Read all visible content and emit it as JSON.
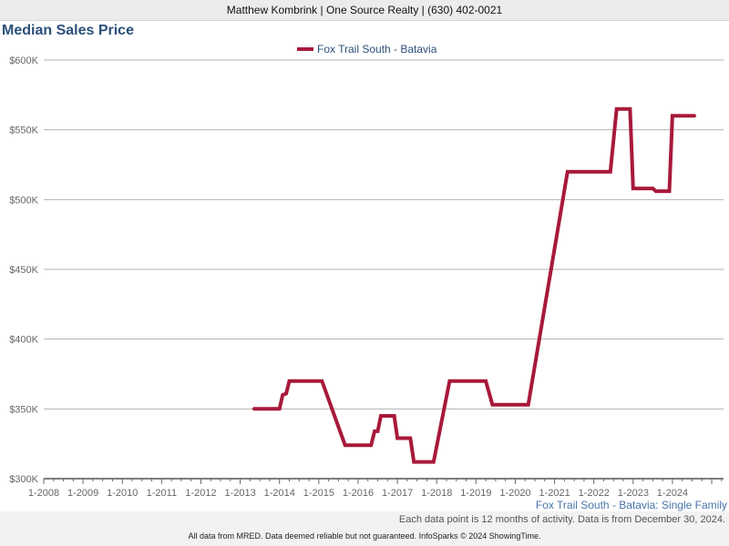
{
  "header": {
    "agent_line": "Matthew Kombrink | One Source Realty | (630) 402-0021"
  },
  "chart_title": "Median Sales Price",
  "chart_data": {
    "type": "line",
    "title": "Median Sales Price",
    "xlabel": "",
    "ylabel": "",
    "xlim": [
      2008.0,
      2025.3
    ],
    "ylim": [
      300000,
      600000
    ],
    "x_tick_values": [
      2008,
      2009,
      2010,
      2011,
      2012,
      2013,
      2014,
      2015,
      2016,
      2017,
      2018,
      2019,
      2020,
      2021,
      2022,
      2023,
      2024
    ],
    "x_tick_labels": [
      "1-2008",
      "1-2009",
      "1-2010",
      "1-2011",
      "1-2012",
      "1-2013",
      "1-2014",
      "1-2015",
      "1-2016",
      "1-2017",
      "1-2018",
      "1-2019",
      "1-2020",
      "1-2021",
      "1-2022",
      "1-2023",
      "1-2024"
    ],
    "y_tick_values": [
      300000,
      350000,
      400000,
      450000,
      500000,
      550000,
      600000
    ],
    "y_tick_labels": [
      "$300K",
      "$350K",
      "$400K",
      "$450K",
      "$500K",
      "$550K",
      "$600K"
    ],
    "grid": true,
    "legend_position": "top-center",
    "series": [
      {
        "name": "Fox Trail South - Batavia",
        "color": "#a8193a",
        "points": [
          [
            2013.33,
            350000
          ],
          [
            2014.0,
            350000
          ],
          [
            2014.08,
            360000
          ],
          [
            2014.17,
            361000
          ],
          [
            2014.25,
            370000
          ],
          [
            2015.08,
            370000
          ],
          [
            2015.67,
            324000
          ],
          [
            2016.33,
            324000
          ],
          [
            2016.42,
            334000
          ],
          [
            2016.5,
            334000
          ],
          [
            2016.58,
            345000
          ],
          [
            2016.92,
            345000
          ],
          [
            2017.0,
            329000
          ],
          [
            2017.33,
            329000
          ],
          [
            2017.42,
            312000
          ],
          [
            2017.92,
            312000
          ],
          [
            2018.33,
            370000
          ],
          [
            2019.25,
            370000
          ],
          [
            2019.42,
            353000
          ],
          [
            2020.33,
            353000
          ],
          [
            2021.33,
            520000
          ],
          [
            2022.42,
            520000
          ],
          [
            2022.58,
            565000
          ],
          [
            2022.92,
            565000
          ],
          [
            2023.0,
            508000
          ],
          [
            2023.5,
            508000
          ],
          [
            2023.58,
            506000
          ],
          [
            2023.92,
            506000
          ],
          [
            2024.0,
            560000
          ],
          [
            2024.58,
            560000
          ]
        ]
      }
    ]
  },
  "series_label": "Fox Trail South - Batavia: Single Family",
  "note": "Each data point is 12 months of activity. Data is from December 30, 2024.",
  "footer": "All data from MRED. Data deemed reliable but not guaranteed. InfoSparks © 2024 ShowingTime."
}
